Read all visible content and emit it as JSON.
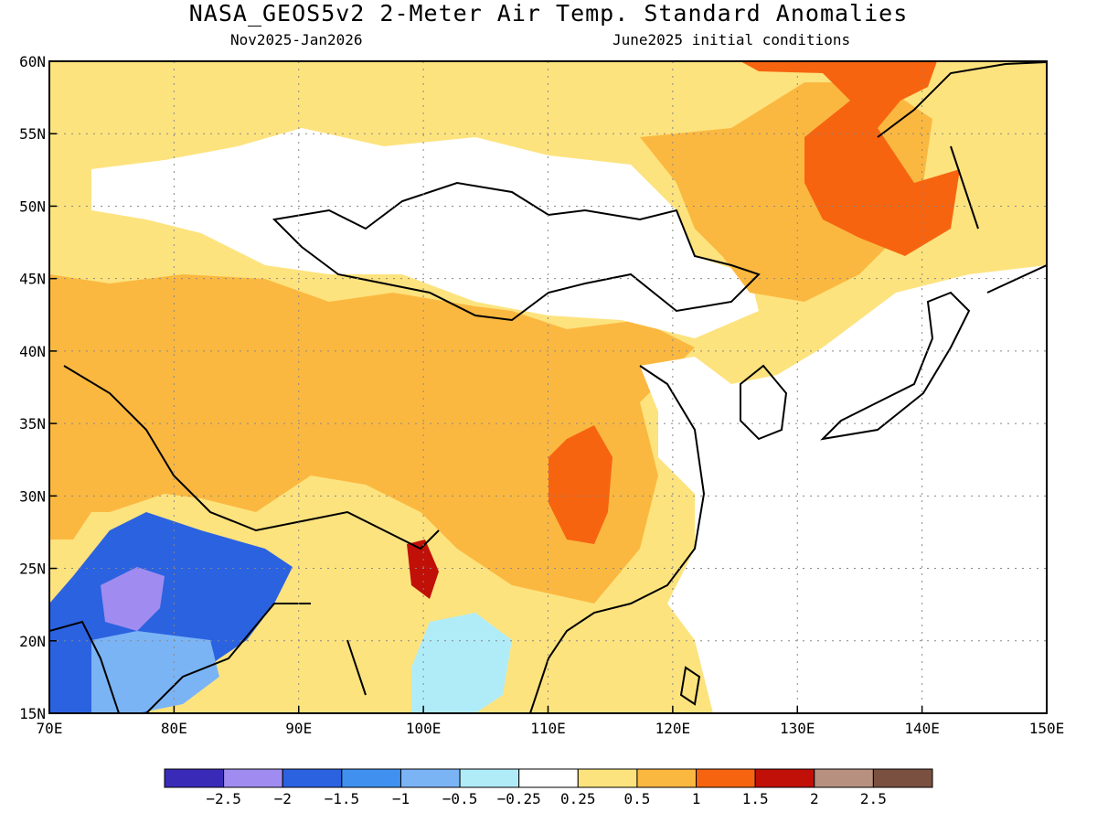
{
  "title": "NASA_GEOS5v2 2-Meter Air Temp. Standard Anomalies",
  "subtitle_left": "Nov2025-Jan2026",
  "subtitle_right": "June2025 initial conditions",
  "map": {
    "lon_range": [
      70,
      150
    ],
    "lat_range": [
      15,
      60
    ],
    "lon_ticks": [
      "70E",
      "80E",
      "90E",
      "100E",
      "110E",
      "120E",
      "130E",
      "140E",
      "150E"
    ],
    "lat_ticks": [
      "15N",
      "20N",
      "25N",
      "30N",
      "35N",
      "40N",
      "45N",
      "50N",
      "55N",
      "60N"
    ],
    "gridlines": "dotted",
    "land_outline_color": "#000000"
  },
  "legend": {
    "bins": [
      {
        "color": "#3a2ab8"
      },
      {
        "color": "#a08cf0"
      },
      {
        "color": "#2b62e0"
      },
      {
        "color": "#4090f0"
      },
      {
        "color": "#7ab4f5"
      },
      {
        "color": "#b0ecf8"
      },
      {
        "color": "#ffffff"
      },
      {
        "color": "#fde37e"
      },
      {
        "color": "#fbb840"
      },
      {
        "color": "#f76410"
      },
      {
        "color": "#c01008"
      },
      {
        "color": "#b89080"
      },
      {
        "color": "#7a5040"
      }
    ],
    "labels": [
      "-2.5",
      "-2",
      "-1.5",
      "-1",
      "-0.5",
      "-0.25",
      "0.25",
      "0.5",
      "1",
      "1.5",
      "2",
      "2.5"
    ]
  },
  "fields": {
    "background_color": "#fde37e",
    "regions": [
      {
        "name": "northwest-orange",
        "color": "#fbb840"
      },
      {
        "name": "mongolia-white",
        "color": "#ffffff"
      },
      {
        "name": "northeast-orange",
        "color": "#fbb840"
      },
      {
        "name": "far-east-dark-orange",
        "color": "#f76410"
      },
      {
        "name": "central-china-orange",
        "color": "#fbb840"
      },
      {
        "name": "central-china-hotspot",
        "color": "#f76410"
      },
      {
        "name": "india-blue",
        "color": "#2b62e0"
      },
      {
        "name": "india-light-blue",
        "color": "#7ab4f5"
      },
      {
        "name": "india-purple",
        "color": "#a08cf0"
      },
      {
        "name": "myanmar-red",
        "color": "#c01008"
      },
      {
        "name": "indochina-cyan",
        "color": "#b0ecf8"
      }
    ]
  }
}
